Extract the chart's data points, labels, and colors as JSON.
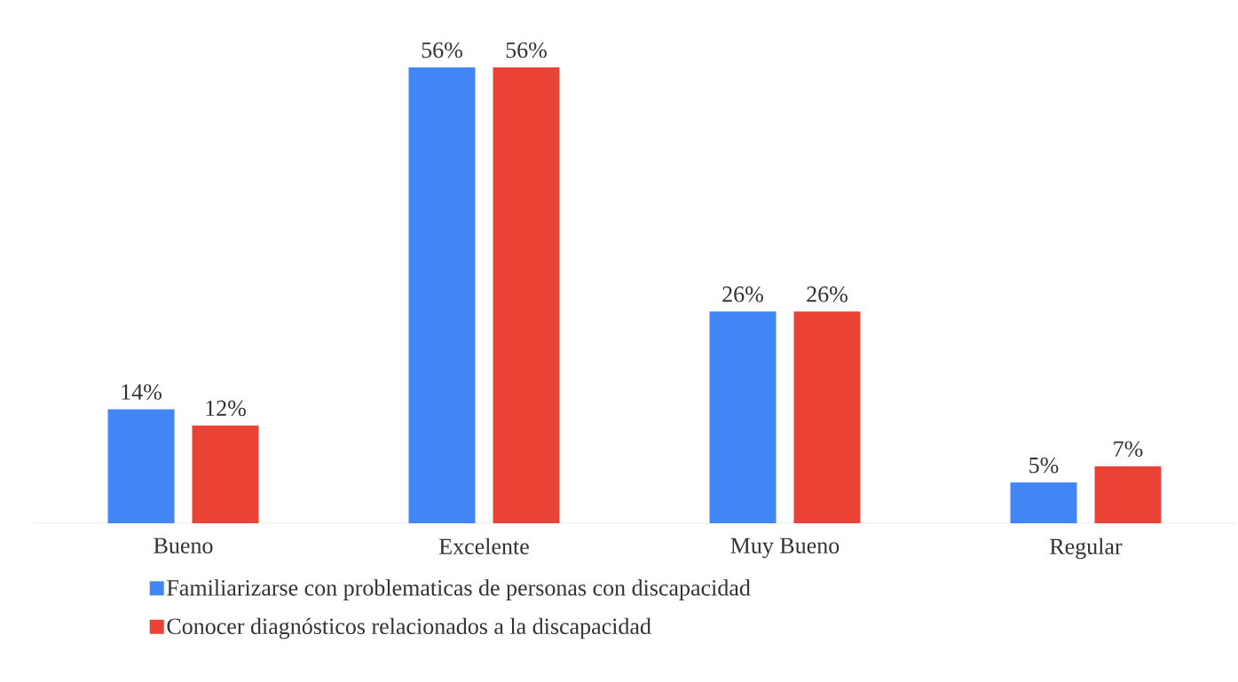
{
  "chart_data": {
    "type": "bar",
    "categories": [
      "Bueno",
      "Excelente",
      "Muy Bueno",
      "Regular"
    ],
    "series": [
      {
        "name": "Familiarizarse con problematicas de personas con discapacidad",
        "color": "#4285f4",
        "values": [
          14,
          56,
          26,
          5
        ],
        "value_labels": [
          "14%",
          "56%",
          "26%",
          "5%"
        ]
      },
      {
        "name": "Conocer diagnósticos relacionados a la discapacidad",
        "color": "#ea4335",
        "values": [
          12,
          56,
          26,
          7
        ],
        "value_labels": [
          "12%",
          "56%",
          "26%",
          "7%"
        ]
      }
    ],
    "legend": "bottom"
  }
}
